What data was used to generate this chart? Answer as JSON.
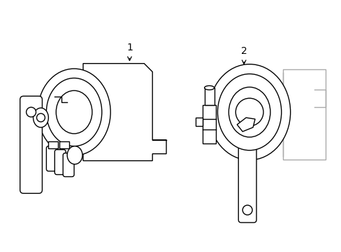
{
  "background_color": "#ffffff",
  "line_color": "#000000",
  "gray_color": "#aaaaaa",
  "label1": "1",
  "label2": "2",
  "figsize": [
    4.89,
    3.6
  ],
  "dpi": 100
}
